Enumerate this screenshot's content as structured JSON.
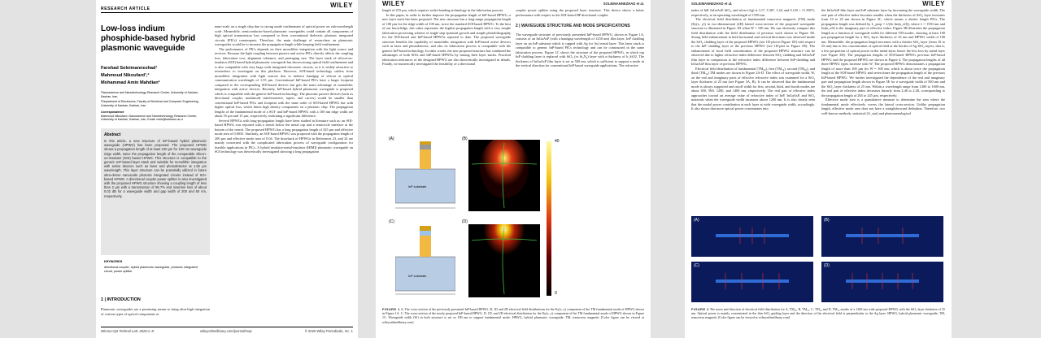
{
  "page1": {
    "header_left": "RESEARCH ARTICLE",
    "header_right": "WILEY",
    "title": "Low-loss indium phosphide-based hybrid plasmonic waveguide",
    "authors": [
      "Farshad Soleimannezhad¹",
      "Mahmoud Nikoufard¹,²",
      "Mohammad Amin Mahdian²"
    ],
    "affiliations": [
      "¹Nanoscience and Nanotechnology Research Center, University of Kashan, Kashan, Iran",
      "²Department of Electronics, Faculty of Electrical and Computer Engineering, University of Kashan, Kashan, Iran"
    ],
    "correspondence_label": "Correspondence",
    "correspondence": "Mahmoud Nikoufard, Nanoscience and Nanotechnology Research Center, University of Kashan, Kashan, Iran. Email: mnik@kashanu.ac.ir",
    "abstract_heading": "Abstract",
    "abstract": "In this article, a new structure of InP-based hybrid plasmonic waveguide (HPWG) has been proposed. The proposed HPWG shows a propagation length of at least 100 µm for 100 nm waveguide ridge width, twice the propagation length of the comparable silicon-on-insulator (SOI) based HPWG. This structure is compatible to the generic InP-based layer stack and suitable for monolithic integration with active devices such as laser and photodetector at 1.55 µm wavelength. This layer structure can be potentially utilized in future ultra-dense nanoscale photonic integrated circuits instead of SOI-based HPWG. A directional coupler power splitter is also investigated with the proposed HPWG structure showing a coupling length of less than 2 µm with a transmission of 96.7% and insertion loss of about 0.02 dB for a waveguide width and gap width of 200 and 50 nm, respectively.",
    "keywords_heading": "KEYWORDS",
    "keywords": "directional coupler, hybrid plasmonic waveguide, photonic integrated circuit, power splitter",
    "intro_heading": "1 | INTRODUCTION",
    "intro": "Plasmonic waveguides are a promising means to bring ultra-high integration of various types of optical components at",
    "right_col": [
      "nano-scale on a single chip due to strong mode confinement of optical power on sub-wavelength scale. Meanwhile, semiconductor-based plasmonic waveguides could contain all components of high optical transmission loss compared to their conventional dielectric photonic integrated circuits (PICs) counterparts. Therefore, the main challenge of researchers on plasmonic waveguides would be to increase the propagation length while keeping field confinement.",
      "The performance of PICs depends on their monolithic integration with the light source and receiver. Because the light coupling between passive and active PICs directly affects the coupling loss, fabrication cost, alignment tolerance, and packaging size. The layer stack of silicon-on-insulator (SOI) based hybrid plasmonic waveguide has shown strong optical field confinement and is also compatible with very large scale integrated electronic circuits, so it is widely attractive to researchers to investigate on this platform. However, SOI-based technology suffers from monolithic integration with light sources due to indirect bandgap of silicon at optical communication wavelength of 1.55 µm. Conventional InP-based PICs have a larger footprint compared to the corresponding SOI-based devices but gets the main advantage of monolithic integration with active devices. Recently, InP-based hybrid plasmonic waveguide is proposed which is compatible with the generic InP-based technology. The photonic passive devices (such as directional coupler, multimode interferometer, tapers, and curves) would be smaller than conventional InP-based PICs and footprint with the same order of SOI-based HPWG but with higher optical loss, which limits high density components on a photonic chip. The propagation lengths of the fundamental mode of a SOI- and InP-based HPWG with a 100 nm ridge width are about 55 µm and 15 µm, respectively, indicating a significant difference.",
      "Several HPWGs with long-propagation length have been studied in literature such as: an SOI-based HPWG was reported with a trench below the metal cap and a semicircle interface at the bottom of the trench. The proposed HPWG has a long propagation length of 325 µm and effective mode area of 0.0035. Similarly, an SOI-based HPWG was proposed with the propagation length of 200 µm and effective mode area of 0.04. The drawback of HPWGs in References 23, and 24 are mainly concerned with the complicated fabrication process of waveguide configuration for feasible applications in PICs. A hybrid insulator-metal-insulator (HIMI) plasmonic waveguide on SOI technology was theoretically investigated showing a long propagation"
    ],
    "footer_left": "Microw Opt Technol Lett. 2020;1–8.",
    "footer_mid": "wileyonlinelibrary.com/journal/mop",
    "footer_right": "© 2020 Wiley Periodicals, Inc. 1"
  },
  "page2": {
    "header_left": "WILEY",
    "header_right": "SOLEIMANNEZHAD et al.",
    "col1": [
      "length of 253 µm, which requires wafer-bonding technology in the fabrication process.",
      "In this paper, in order to further improve the propagation length of InP-based HPWG, a new layer stack has been proposed. The new structure has a long-range propagation length of 100 µm for the ridge width of 100 nm, twice the standard SOI-based HPWG. To the best of our knowledge, this value represents the highest propagation length with a very simple fabrication processing scheme of single step epitaxial growth and simple photolithography for the SOI-based and InP-based HPWGs reported to date. The proposed waveguide structure benefits the capability of monolithic integration with InP-based active devices such as laser and photodetector, and also its fabrication process is compatible with the generic InP-based technology. In other words, the new proposed structure has combined the advantages of both SOIs and InP-based HPWGs by mixing their layer stacks. Practical fabrication tolerances of the designed HPWG are also theoretically investigated in details. Finally, we numerically investigated the feasibility of a directional"
    ],
    "col2_top": "coupler power splitter using the proposed layer structure. This device shows a better performance with respect to the SOI-based HP directional coupler.",
    "section_heading": "2 | WAVEGUIDE STRUCTURE AND MODE SPECIFICATIONS",
    "col2": "The waveguide structure of previously presented InP-based HPWG, shown in Figure 1A, consists of an InGaAsP (with a bandgap wavelength of 1250 nm) film layer, InP cladding layer on an InP substrate which is capped with Ag (or Au) metal layer. This layer stack is compatible to generic InP-based PICs technology and can be constructed in the same fabrication process. Figure 1C shows the structure of the proposed HPWG, in which top InP cladding layer is replaced with SiO₂ (or Si₃N₄) layer with a thickness of h_SiO2. The thickness of InGaAsP film layer is set as 500 nm, which is sufficient to support a mode in the vertical direction for conventional InP-based waveguide applications. The refractive",
    "panels": [
      "(A)",
      "(B)",
      "(C)",
      "(D)"
    ],
    "substrate_label": "InP substrate",
    "colorbar_ticks": [
      "40",
      "0"
    ],
    "caption_label": "FIGURE 1",
    "caption": "A, The cross-section of the previously presented InP-based HPWG. B, 1D and 2D electrical field distributions for the Ey(x, y) component of the TM fundamental mode of HPWG shown in Figure 1A. C, The cross-section of the newly proposed InP-based HPWG. D, 1D, and 2D electrical distribution for the Ey(x, y) component of the TM fundamental mode of HPWG shown in Figure 1C. Waveguide width (W) in both structure is set as 100 nm to support fundamental mode. HPWG, hybrid plasmonic waveguide; TM, transverse magnetic [Color figure can be viewed at wileyonlinelibrary.com]"
  },
  "page3": {
    "header_left": "SOLEIMANNEZHAD et al.",
    "header_right": "WILEY",
    "col1": [
      "index of InP, InGaAsP, SiO₂, and silver (Ag) is 3.17, 3.367, 1.44, and 0.145 + 11.3587i, respectively, at an operating wavelength of 1550 nm.",
      "The electrical field distribution of fundamental transverse magnetic (TM) mode (Ey(x, y)) in two-dimensional (2D) lateral cross-section of the proposed waveguide structure is illustrated in Figure 1D when W = 100 nm. We can obviously compare this field distribution with the field distribution of previous work shown in Figure 1B. Strong field enhancement in both horizontal and vertical directions was observed inside the SiO₂ cladding layer of the proposed HPWG (see 1D-plot in Figure 1D) with respect to the InP cladding layer of the previous HPWG (see 1D-plot in Figure 1B). The enhancement of local field concentration of the proposed HPWG structure can be observed due to higher refractive index difference between SiO₂-cladding and InGaAsP film layer in comparison to the refractive index difference between InP-cladding and InGaAsP film layer of previous HPWG.",
      "Electrical field distribution of fundamental (TM₀₀), first (TM₁₀), second (TM₂₀), and third (TM₃₀) TM modes are shown in Figure 2A-D. The effect of waveguide width, W, on the real and imaginary parts of effective refractive index was examined for a SiO₂ layer thickness of 25 nm (see Figure 3A, B). It can be observed that the fundamental mode is always supported and cutoff width for first, second, third, and fourth modes are about 650, 900, 1200, and 1400 nm, respectively. The real part of effective index approaches toward an average value of refractive index of InP, InGaAsP, and SiO₂ materials when the waveguide width increases above 1200 nm. It is also clearly seen that the modal power contribution at each layer at wide waveguide width, accordingly. It also shows that more optical power concentrates into"
    ],
    "col2": [
      "the InGaAsP film layer and InP substrate layer by increasing the waveguide width. The real part of effective index becomes smaller when the thickness of SiO₂ layer increases from 10 to 25 nm shown in Figure 3C, which means a shorter length PICs. The propagation length was defined by L_prop = λ/(4π Im(n_eff)), where λ = 1550 nm and Im(n_eff) is the imaginary part of effective index. Figure 3B illustrates the propagation length as a function of waveguide width for different TM modes, showing at least 100 µm propagation length for a SiO₂ layer thickness of 25 nm and HPWG width of 100 nm. Meanwhile, the propagation length increases with a thicker SiO₂ layer (from 10 to 25 nm) due to less concentration of optical field at the border of Ag-SiO₂ layers, that is, a less proportion of optical power in the metal layer, hence the less loss by metal layer (see Figure 3D). The propagation lengths of SOI-based HPWG previous InP-based HPWG and the proposed HPWG are shown in Figure 4. The propagation lengths of all three HPWG types increase with W. The proposed HPWG demonstrates a propagation length of more than 100 µm for W = 100 nm, which is about twice the propagation length of the SOI-based HPWG and seven times the propagation length of the previous InP-based HPWG. We further investigated the dependence of the real and imaginary part and propagation length shown in Figure 3E for a waveguide width of 500 nm and the SiO₂ layer thickness of 25 nm. Within a wavelength range from 1400 to 1600 nm, the real part of effective index decreases linearly from 2.46 to 2.40, corresponding to the propagation length of 265 to 245 µm, respectively.",
      "Effective mode area is a quantitative measure to determine the area where the fundamental mode effectively covers the lateral cross-section. Unlike propagation length, effective mode area does not have a straightforward definition. Therefore, two well-known methods, statistical (A_stat) and phenomenological"
    ],
    "panels": [
      "(A)",
      "(B)",
      "(C)",
      "(D)"
    ],
    "caption_label": "FIGURE 2",
    "caption": "The norm and direction of electrical field distribution for A, TM₀₀, B, TM₁₀, C, TM₂₀ and D, TM₃₀ modes of a 1200 nm wide proposed-HPWG with the SiO₂ layer thickness of 25 nm. Optical power is mainly concentrated in the thin SiO₂ guiding layer and the direction of the electrical field is perpendicular to the Ag layer. HPWG, hybrid plasmonic waveguide; TM, transverse magnetic [Color figure can be viewed at wileyonlinelibrary.com]"
  }
}
